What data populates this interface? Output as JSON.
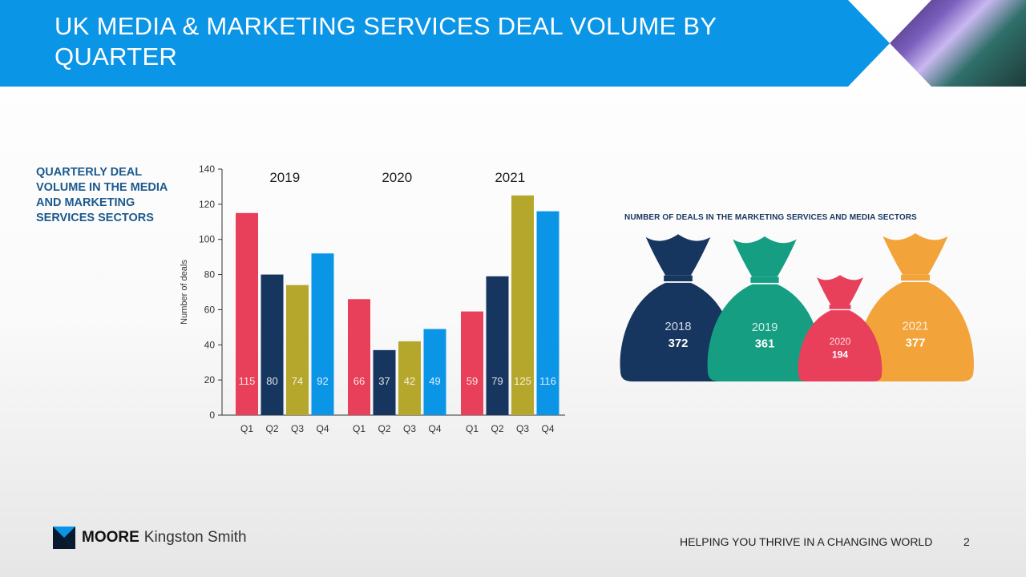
{
  "header": {
    "title": "UK MEDIA & MARKETING SERVICES DEAL VOLUME BY QUARTER"
  },
  "side_title": "QUARTERLY DEAL VOLUME IN THE MEDIA AND MARKETING SERVICES SECTORS",
  "chart_data": [
    {
      "type": "bar",
      "title": "",
      "ylabel": "Number of deals",
      "xlabel": "",
      "ylim": [
        0,
        140
      ],
      "yticks": [
        0,
        20,
        40,
        60,
        80,
        100,
        120,
        140
      ],
      "grid": false,
      "legend": "none",
      "quarter_colors": [
        "#e8405b",
        "#17365f",
        "#b5a72c",
        "#0b95e6"
      ],
      "value_label_colors": [
        "#ffffff",
        "#ffffff",
        "#ffffff",
        "#ffffff"
      ],
      "groups": [
        {
          "name": "2019",
          "categories": [
            "Q1",
            "Q2",
            "Q3",
            "Q4"
          ],
          "values": [
            115,
            80,
            74,
            92
          ]
        },
        {
          "name": "2020",
          "categories": [
            "Q1",
            "Q2",
            "Q3",
            "Q4"
          ],
          "values": [
            66,
            37,
            42,
            49
          ]
        },
        {
          "name": "2021",
          "categories": [
            "Q1",
            "Q2",
            "Q3",
            "Q4"
          ],
          "values": [
            59,
            79,
            125,
            116
          ]
        }
      ]
    },
    {
      "type": "pictogram",
      "title": "NUMBER OF DEALS IN THE MARKETING SERVICES AND MEDIA SECTORS",
      "categories": [
        "2018",
        "2019",
        "2020",
        "2021"
      ],
      "values": [
        372,
        361,
        194,
        377
      ],
      "colors": [
        "#17365f",
        "#169e83",
        "#e8405b",
        "#f2a33a"
      ]
    }
  ],
  "footer": {
    "brand": "MOORE",
    "brand_sub": "Kingston Smith",
    "tagline": "HELPING YOU THRIVE IN A CHANGING WORLD",
    "page": "2"
  }
}
